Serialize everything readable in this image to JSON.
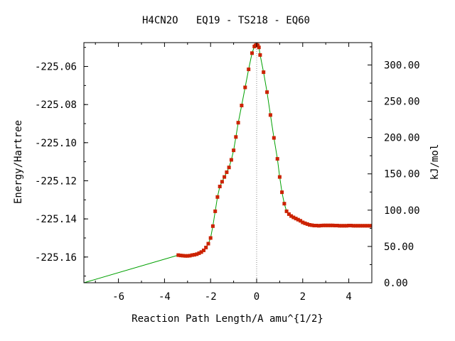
{
  "chart_data": {
    "type": "line",
    "title": "H4CN2O   EQ19 - TS218 - EQ60",
    "xlabel": "Reaction Path Length/A amu^{1/2}",
    "ylabel": "Energy/Hartree",
    "y2label": "kJ/mol",
    "xlim": [
      -7.5,
      5.0
    ],
    "ylim": [
      -225.1735,
      -225.0475
    ],
    "y2lim": [
      0,
      330.8
    ],
    "xticks": [
      -6,
      -4,
      -2,
      0,
      2,
      4
    ],
    "xtick_labels": [
      "-6",
      "-4",
      "-2",
      "0",
      "2",
      "4"
    ],
    "yticks": [
      -225.06,
      -225.08,
      -225.1,
      -225.12,
      -225.14,
      -225.16
    ],
    "ytick_labels": [
      "-225.06",
      "-225.08",
      "-225.10",
      "-225.12",
      "-225.14",
      "-225.16"
    ],
    "y2ticks": [
      0,
      50,
      100,
      150,
      200,
      250,
      300
    ],
    "y2tick_labels": [
      "0.00",
      "50.00",
      "100.00",
      "150.00",
      "200.00",
      "250.00",
      "300.00"
    ],
    "ts_marker_x": 0.0,
    "grid": false,
    "colors": {
      "line": "#00a000",
      "points": "#cc2200",
      "axes": "#000000",
      "ts_line": "#888888"
    },
    "connector": {
      "x": [
        -7.5,
        -3.4
      ],
      "y": [
        -225.1735,
        -225.159
      ]
    },
    "series": [
      {
        "x": [
          -3.4,
          -3.3,
          -3.2,
          -3.1,
          -3.0,
          -2.9,
          -2.8,
          -2.7,
          -2.6,
          -2.5,
          -2.4,
          -2.3,
          -2.2,
          -2.1,
          -2.0,
          -1.9,
          -1.8,
          -1.7,
          -1.6,
          -1.5,
          -1.4,
          -1.3,
          -1.2,
          -1.1,
          -1.0,
          -0.9,
          -0.8,
          -0.65,
          -0.5,
          -0.35,
          -0.2,
          -0.1,
          -0.05,
          0.0,
          0.05,
          0.1,
          0.15,
          0.3,
          0.45,
          0.6,
          0.75,
          0.9,
          1.0,
          1.1,
          1.2,
          1.3,
          1.4,
          1.5,
          1.6,
          1.7,
          1.8,
          1.9,
          2.0,
          2.1,
          2.2,
          2.3,
          2.4,
          2.5,
          2.6,
          2.7,
          2.8,
          2.9,
          3.0,
          3.1,
          3.2,
          3.3,
          3.4,
          3.5,
          3.6,
          3.7,
          3.8,
          3.9,
          4.0,
          4.1,
          4.2,
          4.3,
          4.4,
          4.5,
          4.6,
          4.7,
          4.8,
          4.9,
          5.0
        ],
        "y": [
          -225.159,
          -225.1592,
          -225.1593,
          -225.1594,
          -225.1594,
          -225.1593,
          -225.159,
          -225.1588,
          -225.1585,
          -225.158,
          -225.1574,
          -225.1565,
          -225.155,
          -225.153,
          -225.15,
          -225.1438,
          -225.136,
          -225.1285,
          -225.123,
          -225.1205,
          -225.118,
          -225.1155,
          -225.113,
          -225.109,
          -225.104,
          -225.097,
          -225.0895,
          -225.0805,
          -225.071,
          -225.0615,
          -225.053,
          -225.0495,
          -225.049,
          -225.0487,
          -225.049,
          -225.05,
          -225.054,
          -225.063,
          -225.0735,
          -225.0855,
          -225.0975,
          -225.1085,
          -225.118,
          -225.126,
          -225.132,
          -225.136,
          -225.1375,
          -225.1385,
          -225.1392,
          -225.1398,
          -225.1404,
          -225.141,
          -225.1418,
          -225.1423,
          -225.1427,
          -225.1431,
          -225.1433,
          -225.1435,
          -225.1435,
          -225.1436,
          -225.1435,
          -225.1434,
          -225.1434,
          -225.1434,
          -225.1434,
          -225.1434,
          -225.1435,
          -225.1435,
          -225.1436,
          -225.1436,
          -225.1436,
          -225.1436,
          -225.1435,
          -225.1435,
          -225.1436,
          -225.1436,
          -225.1436,
          -225.1436,
          -225.1436,
          -225.1436,
          -225.1436,
          -225.1436,
          -225.1436
        ]
      }
    ]
  }
}
